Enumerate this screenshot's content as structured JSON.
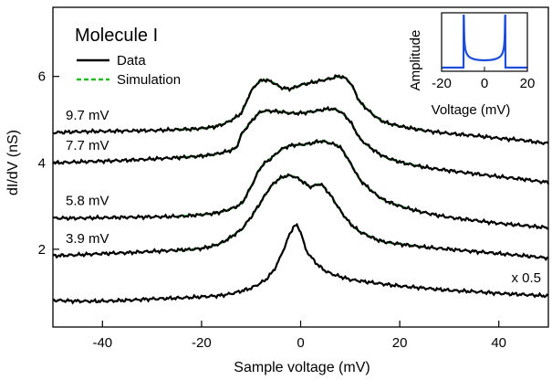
{
  "chart_data": {
    "type": "line",
    "title": "Molecule I",
    "xlabel": "Sample voltage (mV)",
    "ylabel": "dI/dV (nS)",
    "xlim": [
      -50,
      50
    ],
    "ylim": [
      0.2,
      7.6
    ],
    "x_ticks": [
      -40,
      -20,
      0,
      20,
      40
    ],
    "y_ticks": [
      2,
      4,
      6
    ],
    "grid": false,
    "legend": {
      "position": "top-left",
      "entries": [
        {
          "label": "Data",
          "color": "#000000",
          "style": "solid"
        },
        {
          "label": "Simulation",
          "color": "#22bb22",
          "style": "dashed"
        }
      ]
    },
    "series": [
      {
        "label": "9.7 mV",
        "x": [
          -50,
          -45,
          -40,
          -35,
          -30,
          -25,
          -20,
          -16,
          -12,
          -10,
          -8,
          -6,
          -4,
          -2,
          0,
          2,
          4,
          6,
          8,
          10,
          12,
          16,
          20,
          25,
          30,
          35,
          40,
          45,
          50
        ],
        "y": [
          4.7,
          4.72,
          4.73,
          4.74,
          4.75,
          4.77,
          4.8,
          4.88,
          5.15,
          5.65,
          5.9,
          5.88,
          5.75,
          5.72,
          5.8,
          5.85,
          5.9,
          5.95,
          6.0,
          5.85,
          5.4,
          5.0,
          4.85,
          4.75,
          4.68,
          4.63,
          4.57,
          4.52,
          4.45
        ]
      },
      {
        "label": "7.7 mV",
        "x": [
          -50,
          -45,
          -40,
          -35,
          -30,
          -25,
          -20,
          -16,
          -13,
          -12,
          -10,
          -8,
          -6,
          -4,
          -2,
          0,
          2,
          4,
          6,
          8,
          10,
          12,
          16,
          20,
          25,
          30,
          35,
          40,
          45,
          50
        ],
        "y": [
          4.0,
          4.02,
          4.04,
          4.06,
          4.09,
          4.12,
          4.16,
          4.23,
          4.35,
          4.65,
          4.95,
          5.18,
          5.2,
          5.18,
          5.15,
          5.15,
          5.18,
          5.22,
          5.25,
          5.18,
          4.95,
          4.55,
          4.2,
          4.02,
          3.9,
          3.82,
          3.75,
          3.68,
          3.62,
          3.55
        ]
      },
      {
        "label": "5.8 mV",
        "x": [
          -50,
          -45,
          -40,
          -35,
          -30,
          -25,
          -20,
          -16,
          -12,
          -10,
          -8,
          -6,
          -4,
          -2,
          0,
          2,
          4,
          6,
          8,
          10,
          12,
          16,
          20,
          25,
          30,
          35,
          40,
          45,
          50
        ],
        "y": [
          2.72,
          2.72,
          2.73,
          2.74,
          2.75,
          2.76,
          2.8,
          2.87,
          3.05,
          3.45,
          3.9,
          4.1,
          4.3,
          4.4,
          4.42,
          4.45,
          4.5,
          4.45,
          4.35,
          4.0,
          3.6,
          3.2,
          3.0,
          2.85,
          2.74,
          2.67,
          2.6,
          2.55,
          2.5
        ]
      },
      {
        "label": "3.9 mV",
        "x": [
          -50,
          -45,
          -40,
          -35,
          -30,
          -25,
          -20,
          -16,
          -12,
          -10,
          -8,
          -6,
          -4,
          -2,
          0,
          2,
          4,
          6,
          8,
          10,
          12,
          16,
          20,
          25,
          30,
          35,
          40,
          45,
          50
        ],
        "y": [
          1.85,
          1.87,
          1.9,
          1.92,
          1.95,
          1.98,
          2.02,
          2.15,
          2.45,
          2.75,
          3.1,
          3.45,
          3.65,
          3.7,
          3.6,
          3.45,
          3.5,
          3.25,
          2.9,
          2.6,
          2.4,
          2.2,
          2.12,
          2.05,
          2.0,
          1.95,
          1.9,
          1.85,
          1.8
        ]
      },
      {
        "label": "x 0.5",
        "x": [
          -50,
          -45,
          -40,
          -35,
          -30,
          -25,
          -20,
          -15,
          -10,
          -7,
          -5,
          -3,
          -2,
          -1,
          0,
          1,
          3,
          5,
          7,
          10,
          15,
          20,
          25,
          30,
          35,
          40,
          45,
          50
        ],
        "y": [
          0.82,
          0.8,
          0.8,
          0.82,
          0.85,
          0.87,
          0.9,
          0.95,
          1.1,
          1.3,
          1.6,
          2.1,
          2.4,
          2.55,
          2.4,
          2.0,
          1.7,
          1.5,
          1.4,
          1.3,
          1.22,
          1.15,
          1.1,
          1.05,
          1.02,
          0.98,
          0.95,
          0.92
        ]
      }
    ],
    "simulation_range": [
      -25,
      25
    ],
    "inset": {
      "type": "line",
      "xlabel": "Voltage (mV)",
      "ylabel": "Amplitude",
      "xlim": [
        -20,
        20
      ],
      "x_ticks": [
        -20,
        0,
        20
      ],
      "peak_position": 9.7,
      "color": "#1f4fd8"
    }
  }
}
